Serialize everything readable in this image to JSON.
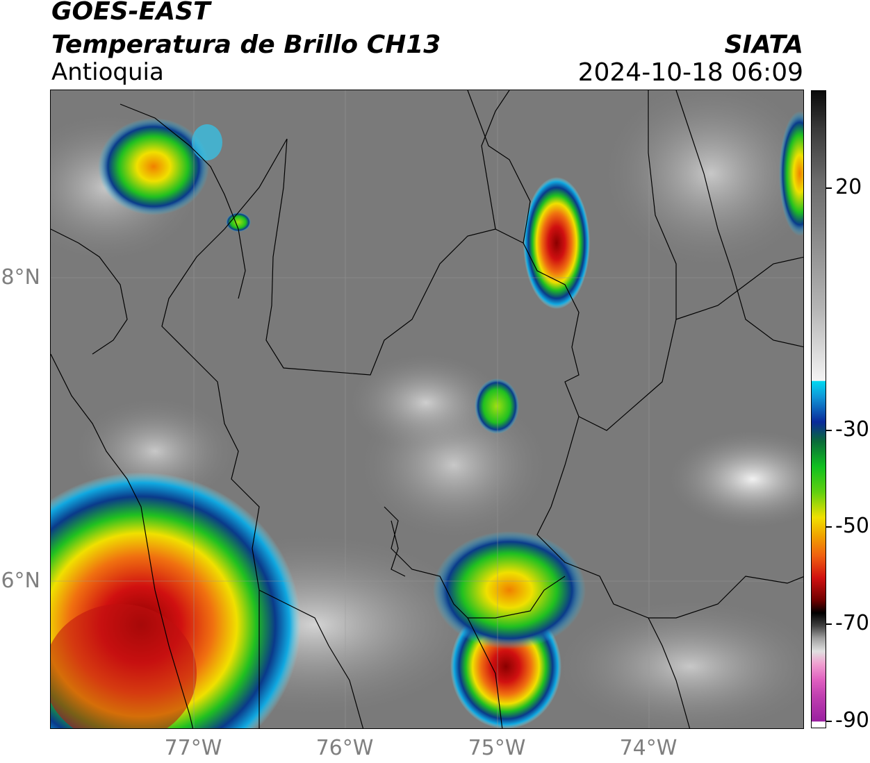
{
  "header": {
    "title_line1": "GOES-EAST",
    "title_line2": "Temperatura de Brillo CH13",
    "region": "Antioquia",
    "organization": "SIATA",
    "timestamp": "2024-10-18 06:09"
  },
  "map": {
    "latitude_labels": [
      "8°N",
      "6°N"
    ],
    "longitude_labels": [
      "77°W",
      "76°W",
      "75°W",
      "74°W"
    ],
    "background_color": "#7a7a7a"
  },
  "colorbar": {
    "tick_labels": [
      "20",
      "-30",
      "-50",
      "-70",
      "-90"
    ],
    "tick_values": [
      20,
      -30,
      -50,
      -70,
      -90
    ],
    "range": [
      -90,
      30
    ],
    "colors": {
      "warm_gray_top": "#0a0a0a",
      "mid_gray": "#9a9a9a",
      "white": "#f4f4f4",
      "cyan": "#00d8f0",
      "blue": "#0030a0",
      "green": "#10c020",
      "yellow": "#f0e000",
      "orange": "#f09000",
      "red": "#d01010",
      "black": "#000000",
      "pink": "#f080c0",
      "purple": "#a020a0"
    }
  }
}
